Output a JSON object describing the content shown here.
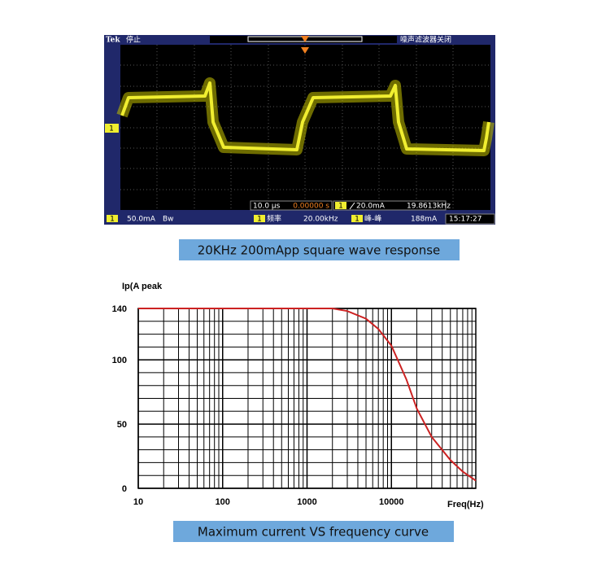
{
  "scope": {
    "brand": "Tek",
    "status": "停止",
    "filter": "噪声滤波器关闭",
    "channel": "1",
    "timebase": "10.0 μs",
    "delay": "0.00000 s",
    "trigger_level": "20.0mA",
    "trigger_freq": "19.8613kHz",
    "scale": "50.0mA",
    "bw": "Bw",
    "measurements": [
      {
        "label": "频率",
        "value": "20.00kHz"
      },
      {
        "label": "峰-峰",
        "value": "188mA"
      }
    ],
    "time": "15:17:27",
    "caption": "20KHz 200mApp square wave response"
  },
  "chart_data": {
    "type": "line",
    "title": "Maximum current VS frequency curve",
    "x_label": "Freq(Hz)",
    "y_label": "Ip(A peak",
    "log_x": true,
    "grid": true,
    "xlim": [
      10,
      100000
    ],
    "xticks": [
      10,
      100,
      1000,
      10000
    ],
    "x_minor_ticks": [
      20,
      30,
      40,
      50,
      60,
      70,
      80,
      90,
      200,
      300,
      400,
      500,
      600,
      700,
      800,
      900,
      2000,
      3000,
      4000,
      5000,
      6000,
      7000,
      8000,
      9000,
      20000,
      30000,
      40000,
      50000,
      60000,
      70000,
      80000,
      90000
    ],
    "ylim": [
      0,
      140
    ],
    "yticks": [
      0,
      50,
      100,
      140
    ],
    "y_minor_ticks": [
      10,
      20,
      30,
      40,
      60,
      70,
      80,
      90,
      110,
      120,
      130
    ],
    "series": [
      {
        "name": "Ip",
        "color": "#cc2222",
        "x": [
          10,
          100,
          1000,
          2000,
          3000,
          5000,
          7000,
          10000,
          15000,
          20000,
          30000,
          50000,
          70000,
          100000
        ],
        "values": [
          140,
          140,
          140,
          140,
          138,
          132,
          124,
          111,
          85,
          62,
          40,
          22,
          13,
          6
        ]
      }
    ]
  }
}
